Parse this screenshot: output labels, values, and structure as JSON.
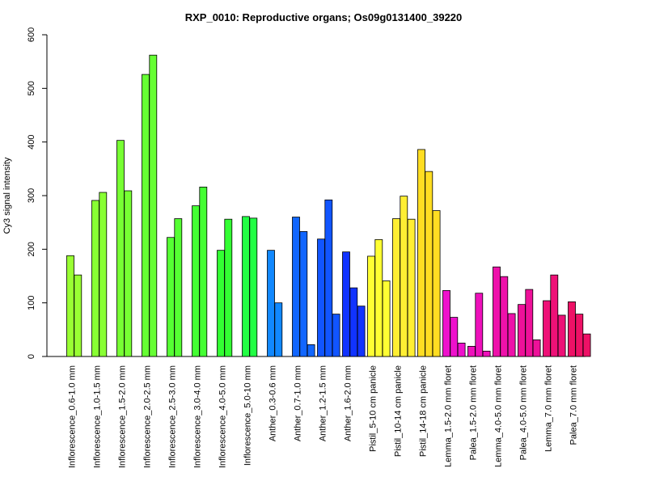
{
  "chart_data": {
    "type": "bar",
    "title": "RXP_0010: Reproductive organs; Os09g0131400_39220",
    "xlabel": "",
    "ylabel": "Cy3 signal intensity",
    "ylim": [
      0,
      600
    ],
    "yticks": [
      0,
      100,
      200,
      300,
      400,
      500,
      600
    ],
    "grid": false,
    "legend": "none",
    "categories": [
      "Inflorescence_0.6-1.0 mm",
      "Inflorescence_1.0-1.5 mm",
      "Inflorescence_1.5-2.0 mm",
      "Inflorescence_2.0-2.5 mm",
      "Inflorescence_2.5-3.0 mm",
      "Inflorescence_3.0-4.0 mm",
      "Inflorescence_4.0-5.0 mm",
      "Inflorescence_5.0-10 mm",
      "Anther_0.3-0.6 mm",
      "Anther_0.7-1.0 mm",
      "Anther_1.2-1.5 mm",
      "Anther_1.6-2.0 mm",
      "Pistil_5-10 cm panicle",
      "Pistil_10-14 cm panicle",
      "Pistil_14-18 cm panicle",
      "Lemma_1.5-2.0 mm floret",
      "Palea_1.5-2.0 mm floret",
      "Lemma_4.0-5.0 mm floret",
      "Palea_4.0-5.0 mm floret",
      "Lemma_7.0 mm floret",
      "Palea_7.0 mm floret"
    ],
    "groups": [
      {
        "color": "#99ff33",
        "values": [
          188,
          152
        ]
      },
      {
        "color": "#88ff33",
        "values": [
          291,
          306
        ]
      },
      {
        "color": "#77ff33",
        "values": [
          403,
          309
        ]
      },
      {
        "color": "#66ff33",
        "values": [
          526,
          562
        ]
      },
      {
        "color": "#55ff33",
        "values": [
          222,
          257
        ]
      },
      {
        "color": "#44ff33",
        "values": [
          281,
          316
        ]
      },
      {
        "color": "#33ff33",
        "values": [
          198,
          256
        ]
      },
      {
        "color": "#22ff44",
        "values": [
          261,
          258
        ]
      },
      {
        "color": "#1188ff",
        "values": [
          198,
          100
        ]
      },
      {
        "color": "#1166ff",
        "values": [
          260,
          233,
          22
        ]
      },
      {
        "color": "#1155ff",
        "values": [
          219,
          292,
          79
        ]
      },
      {
        "color": "#1133ff",
        "values": [
          195,
          128,
          94
        ]
      },
      {
        "color": "#ffff33",
        "values": [
          187,
          218,
          141
        ]
      },
      {
        "color": "#ffee33",
        "values": [
          257,
          299,
          256
        ]
      },
      {
        "color": "#ffdd22",
        "values": [
          386,
          345,
          272
        ]
      },
      {
        "color": "#ee11cc",
        "values": [
          123,
          73,
          25
        ]
      },
      {
        "color": "#ee11bb",
        "values": [
          19,
          118,
          10
        ]
      },
      {
        "color": "#ee11aa",
        "values": [
          167,
          149,
          80
        ]
      },
      {
        "color": "#ee1199",
        "values": [
          97,
          125,
          31
        ]
      },
      {
        "color": "#ee1177",
        "values": [
          104,
          152,
          77
        ]
      },
      {
        "color": "#ee1166",
        "values": [
          102,
          79,
          42
        ]
      }
    ]
  }
}
